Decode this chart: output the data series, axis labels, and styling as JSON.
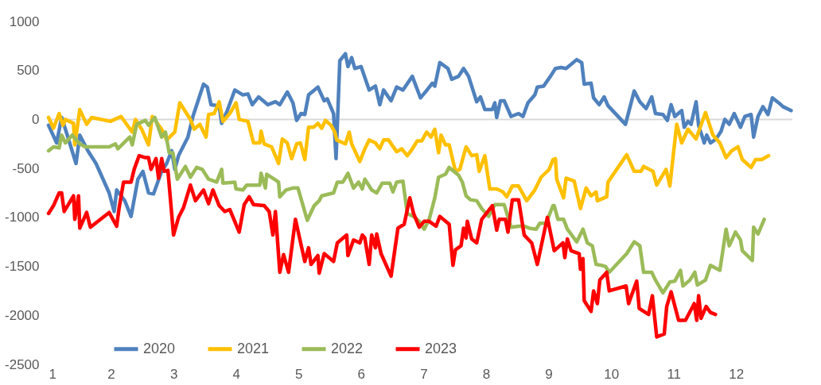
{
  "chart_data": {
    "type": "line",
    "xlim": [
      1,
      12.9
    ],
    "xticks": [
      1,
      2,
      3,
      4,
      5,
      6,
      7,
      8,
      9,
      10,
      11,
      12
    ],
    "ylim": [
      -2500,
      1000
    ],
    "yticks": [
      -2500,
      -2000,
      -1500,
      -1000,
      -500,
      0,
      500,
      1000
    ],
    "legend": "bottom",
    "ref_lines": [
      {
        "axis": "y",
        "value": 0,
        "color": "#d9d9d9"
      }
    ],
    "series": [
      {
        "name": "2020",
        "color": "#4f81bd",
        "x": [
          1.0,
          1.13,
          1.21,
          1.27,
          1.44,
          1.5,
          1.63,
          1.76,
          1.97,
          2.05,
          2.09,
          2.22,
          2.32,
          2.43,
          2.51,
          2.6,
          2.68,
          2.81,
          2.89,
          2.97,
          3.02,
          3.08,
          3.23,
          3.31,
          3.48,
          3.54,
          3.6,
          3.73,
          3.77,
          3.86,
          3.98,
          4.11,
          4.19,
          4.26,
          4.36,
          4.51,
          4.63,
          4.7,
          4.82,
          4.91,
          4.97,
          5.04,
          5.1,
          5.16,
          5.31,
          5.41,
          5.46,
          5.56,
          5.6,
          5.66,
          5.75,
          5.79,
          5.85,
          5.9,
          6.0,
          6.13,
          6.23,
          6.3,
          6.36,
          6.48,
          6.57,
          6.67,
          6.82,
          6.95,
          7.03,
          7.14,
          7.18,
          7.26,
          7.39,
          7.45,
          7.56,
          7.64,
          7.72,
          7.85,
          7.91,
          7.98,
          8.1,
          8.14,
          8.17,
          8.23,
          8.29,
          8.4,
          8.52,
          8.59,
          8.67,
          8.78,
          8.82,
          8.92,
          9.03,
          9.11,
          9.2,
          9.28,
          9.45,
          9.53,
          9.57,
          9.68,
          9.72,
          9.81,
          9.89,
          9.95,
          10.23,
          10.37,
          10.46,
          10.56,
          10.65,
          10.71,
          10.83,
          10.9,
          10.96,
          11.02,
          11.13,
          11.17,
          11.23,
          11.28,
          11.36,
          11.4,
          11.49,
          11.53,
          11.59,
          11.68,
          11.76,
          11.82,
          11.89,
          11.97,
          12.07,
          12.14,
          12.24,
          12.28,
          12.35,
          12.43,
          12.51,
          12.58,
          12.68,
          12.75,
          12.88
        ],
        "values": [
          -60,
          -240,
          20,
          -100,
          -450,
          -160,
          -320,
          -450,
          -750,
          -940,
          -720,
          -830,
          -990,
          -610,
          -530,
          -750,
          -760,
          -530,
          -450,
          -320,
          -510,
          -370,
          -180,
          30,
          360,
          330,
          150,
          140,
          -40,
          90,
          300,
          250,
          260,
          150,
          230,
          150,
          180,
          150,
          280,
          170,
          -10,
          60,
          50,
          250,
          330,
          190,
          210,
          60,
          -400,
          600,
          670,
          540,
          630,
          520,
          540,
          300,
          340,
          150,
          300,
          190,
          330,
          300,
          440,
          220,
          280,
          370,
          340,
          580,
          520,
          410,
          440,
          520,
          440,
          180,
          230,
          100,
          100,
          170,
          20,
          190,
          190,
          30,
          60,
          30,
          170,
          250,
          330,
          340,
          440,
          520,
          530,
          520,
          610,
          580,
          360,
          370,
          220,
          150,
          230,
          140,
          -50,
          290,
          180,
          110,
          230,
          60,
          50,
          -10,
          150,
          30,
          90,
          -80,
          -20,
          -50,
          180,
          -60,
          -240,
          -160,
          -240,
          -200,
          -120,
          0,
          -50,
          60,
          -80,
          30,
          50,
          -180,
          30,
          130,
          50,
          220,
          170,
          130,
          90
        ]
      },
      {
        "name": "2021",
        "color": "#ffc000",
        "x": [
          1.0,
          1.08,
          1.17,
          1.23,
          1.27,
          1.4,
          1.42,
          1.5,
          1.61,
          1.69,
          1.99,
          2.16,
          2.34,
          2.39,
          2.49,
          2.6,
          2.66,
          2.81,
          2.89,
          3.02,
          3.1,
          3.27,
          3.33,
          3.42,
          3.52,
          3.56,
          3.65,
          3.73,
          3.79,
          3.9,
          4.0,
          4.05,
          4.19,
          4.28,
          4.38,
          4.4,
          4.45,
          4.57,
          4.68,
          4.74,
          4.82,
          4.89,
          4.97,
          5.03,
          5.1,
          5.16,
          5.24,
          5.31,
          5.37,
          5.43,
          5.52,
          5.58,
          5.61,
          5.75,
          5.81,
          5.85,
          5.98,
          6.06,
          6.13,
          6.23,
          6.3,
          6.36,
          6.44,
          6.57,
          6.65,
          6.74,
          6.8,
          6.9,
          6.97,
          7.05,
          7.12,
          7.18,
          7.24,
          7.28,
          7.35,
          7.41,
          7.51,
          7.58,
          7.68,
          7.77,
          7.85,
          7.89,
          7.98,
          8.06,
          8.17,
          8.27,
          8.33,
          8.42,
          8.52,
          8.65,
          8.78,
          8.88,
          9.01,
          9.07,
          9.11,
          9.13,
          9.24,
          9.28,
          9.41,
          9.51,
          9.6,
          9.68,
          9.76,
          9.78,
          9.93,
          9.95,
          10.25,
          10.37,
          10.48,
          10.52,
          10.67,
          10.73,
          10.88,
          10.94,
          11.05,
          11.13,
          11.23,
          11.36,
          11.51,
          11.63,
          11.74,
          11.84,
          11.93,
          12.03,
          12.1,
          12.24,
          12.31,
          12.41,
          12.52
        ],
        "values": [
          20,
          -90,
          60,
          -60,
          0,
          -40,
          -260,
          100,
          -50,
          20,
          -20,
          30,
          -130,
          0,
          -100,
          -260,
          30,
          -100,
          -210,
          -130,
          170,
          0,
          -100,
          -50,
          -180,
          50,
          60,
          180,
          -20,
          60,
          170,
          0,
          -20,
          -240,
          -240,
          -120,
          -250,
          -280,
          -450,
          -200,
          -240,
          -400,
          -250,
          -240,
          -410,
          -80,
          -80,
          -40,
          -90,
          -10,
          -60,
          -130,
          -210,
          -250,
          -130,
          -250,
          -430,
          -300,
          -210,
          -240,
          -300,
          -210,
          -210,
          -330,
          -300,
          -370,
          -320,
          -220,
          -220,
          -130,
          -180,
          -100,
          -340,
          -160,
          -260,
          -260,
          -530,
          -510,
          -280,
          -370,
          -360,
          -530,
          -370,
          -710,
          -710,
          -740,
          -790,
          -680,
          -680,
          -830,
          -720,
          -590,
          -510,
          -410,
          -400,
          -610,
          -800,
          -600,
          -630,
          -910,
          -700,
          -780,
          -740,
          -830,
          -790,
          -640,
          -360,
          -530,
          -530,
          -480,
          -530,
          -670,
          -510,
          -680,
          -50,
          -240,
          -100,
          -200,
          70,
          -160,
          -240,
          -390,
          -320,
          -280,
          -410,
          -490,
          -410,
          -410,
          -370
        ]
      },
      {
        "name": "2022",
        "color": "#9bbb59",
        "x": [
          1.0,
          1.08,
          1.17,
          1.21,
          1.27,
          1.38,
          1.5,
          1.59,
          1.97,
          2.07,
          2.11,
          2.3,
          2.34,
          2.41,
          2.55,
          2.6,
          2.7,
          2.81,
          2.87,
          2.93,
          2.99,
          3.06,
          3.19,
          3.27,
          3.37,
          3.46,
          3.56,
          3.69,
          3.77,
          3.79,
          3.98,
          4.0,
          4.11,
          4.17,
          4.26,
          4.38,
          4.4,
          4.47,
          4.49,
          4.61,
          4.68,
          4.7,
          4.8,
          4.91,
          4.99,
          5.14,
          5.25,
          5.33,
          5.37,
          5.56,
          5.62,
          5.71,
          5.79,
          5.88,
          5.96,
          6.02,
          6.06,
          6.17,
          6.25,
          6.34,
          6.46,
          6.51,
          6.57,
          6.67,
          6.74,
          6.84,
          6.93,
          7.01,
          7.09,
          7.18,
          7.24,
          7.35,
          7.41,
          7.56,
          7.62,
          7.68,
          7.75,
          7.85,
          7.93,
          8.04,
          8.14,
          8.29,
          8.4,
          8.52,
          8.61,
          8.69,
          8.8,
          8.86,
          8.96,
          9.07,
          9.09,
          9.15,
          9.24,
          9.3,
          9.45,
          9.55,
          9.62,
          9.7,
          9.76,
          9.85,
          9.91,
          9.97,
          10.25,
          10.37,
          10.46,
          10.52,
          10.65,
          10.71,
          10.83,
          10.94,
          11.02,
          11.11,
          11.15,
          11.26,
          11.34,
          11.38,
          11.51,
          11.59,
          11.74,
          11.84,
          11.89,
          11.99,
          12.07,
          12.1,
          12.26,
          12.28,
          12.35,
          12.45
        ],
        "values": [
          -320,
          -280,
          -290,
          -160,
          -240,
          -160,
          -250,
          -280,
          -280,
          -250,
          -300,
          -180,
          -260,
          -50,
          -10,
          -60,
          20,
          -180,
          -130,
          -340,
          -340,
          -610,
          -480,
          -590,
          -490,
          -510,
          -610,
          -640,
          -510,
          -650,
          -640,
          -710,
          -720,
          -670,
          -670,
          -670,
          -550,
          -700,
          -560,
          -610,
          -640,
          -790,
          -720,
          -700,
          -700,
          -1030,
          -880,
          -830,
          -780,
          -750,
          -640,
          -640,
          -550,
          -700,
          -640,
          -710,
          -610,
          -720,
          -750,
          -650,
          -650,
          -740,
          -640,
          -630,
          -960,
          -990,
          -1040,
          -1120,
          -1020,
          -800,
          -590,
          -560,
          -490,
          -570,
          -640,
          -780,
          -820,
          -830,
          -910,
          -990,
          -870,
          -870,
          -1100,
          -1090,
          -1090,
          -1110,
          -1120,
          -1060,
          -1060,
          -880,
          -880,
          -1020,
          -1020,
          -1120,
          -1250,
          -1120,
          -1260,
          -1290,
          -1480,
          -1490,
          -1500,
          -1560,
          -1370,
          -1250,
          -1290,
          -1560,
          -1560,
          -1640,
          -1770,
          -1660,
          -1650,
          -1540,
          -1700,
          -1640,
          -1560,
          -1690,
          -1640,
          -1490,
          -1540,
          -1120,
          -1290,
          -1150,
          -1230,
          -1340,
          -1440,
          -1100,
          -1170,
          -1020
        ]
      },
      {
        "name": "2023",
        "color": "#ff0000",
        "x": [
          1.0,
          1.08,
          1.17,
          1.21,
          1.25,
          1.4,
          1.42,
          1.48,
          1.5,
          1.61,
          1.67,
          1.97,
          2.09,
          2.13,
          2.2,
          2.32,
          2.37,
          2.45,
          2.55,
          2.6,
          2.64,
          2.72,
          2.76,
          2.81,
          2.85,
          2.91,
          3.0,
          3.08,
          3.16,
          3.27,
          3.35,
          3.48,
          3.56,
          3.63,
          3.73,
          3.82,
          3.9,
          4.05,
          4.13,
          4.21,
          4.28,
          4.45,
          4.53,
          4.59,
          4.63,
          4.7,
          4.76,
          4.84,
          4.95,
          5.1,
          5.16,
          5.2,
          5.31,
          5.33,
          5.41,
          5.56,
          5.62,
          5.77,
          5.79,
          5.88,
          5.98,
          6.02,
          6.06,
          6.13,
          6.17,
          6.23,
          6.25,
          6.32,
          6.48,
          6.59,
          6.69,
          6.78,
          6.84,
          6.93,
          7.01,
          7.09,
          7.2,
          7.26,
          7.41,
          7.47,
          7.51,
          7.6,
          7.64,
          7.68,
          7.7,
          7.77,
          7.85,
          7.93,
          8.1,
          8.17,
          8.21,
          8.31,
          8.35,
          8.42,
          8.52,
          8.61,
          8.73,
          8.82,
          8.98,
          9.09,
          9.23,
          9.26,
          9.3,
          9.36,
          9.49,
          9.51,
          9.55,
          9.57,
          9.68,
          9.72,
          9.78,
          9.82,
          9.93,
          9.97,
          10.24,
          10.28,
          10.41,
          10.45,
          10.6,
          10.66,
          10.73,
          10.85,
          10.89,
          10.96,
          11.08,
          11.19,
          11.33,
          11.37,
          11.4,
          11.44,
          11.52,
          11.59,
          11.67
        ],
        "values": [
          -960,
          -880,
          -750,
          -750,
          -940,
          -780,
          -1020,
          -780,
          -1110,
          -950,
          -1100,
          -950,
          -1090,
          -900,
          -640,
          -640,
          -510,
          -370,
          -390,
          -390,
          -510,
          -400,
          -600,
          -400,
          -530,
          -520,
          -1180,
          -1000,
          -900,
          -670,
          -830,
          -720,
          -860,
          -720,
          -880,
          -940,
          -920,
          -1150,
          -870,
          -790,
          -870,
          -880,
          -940,
          -1180,
          -940,
          -1560,
          -1380,
          -1560,
          -1020,
          -1450,
          -1310,
          -1480,
          -1390,
          -1570,
          -1370,
          -1450,
          -1260,
          -1180,
          -1390,
          -1230,
          -1260,
          -1180,
          -1210,
          -1480,
          -1180,
          -1310,
          -1170,
          -1370,
          -1600,
          -1110,
          -1070,
          -800,
          -960,
          -1100,
          -1040,
          -1040,
          -1090,
          -990,
          -1070,
          -1490,
          -1330,
          -1290,
          -1110,
          -1210,
          -1040,
          -1220,
          -1260,
          -1020,
          -880,
          -1130,
          -1020,
          -1020,
          -1150,
          -820,
          -820,
          -1180,
          -1260,
          -1480,
          -1000,
          -1340,
          -1260,
          -1410,
          -1220,
          -1340,
          -1370,
          -1530,
          -1420,
          -1850,
          -1960,
          -1750,
          -1880,
          -1640,
          -1560,
          -1750,
          -1700,
          -1880,
          -1650,
          -1930,
          -1990,
          -1800,
          -2220,
          -2190,
          -1910,
          -1760,
          -2050,
          -2050,
          -1880,
          -2050,
          -1800,
          -2030,
          -1910,
          -1970,
          -1990
        ]
      }
    ]
  }
}
